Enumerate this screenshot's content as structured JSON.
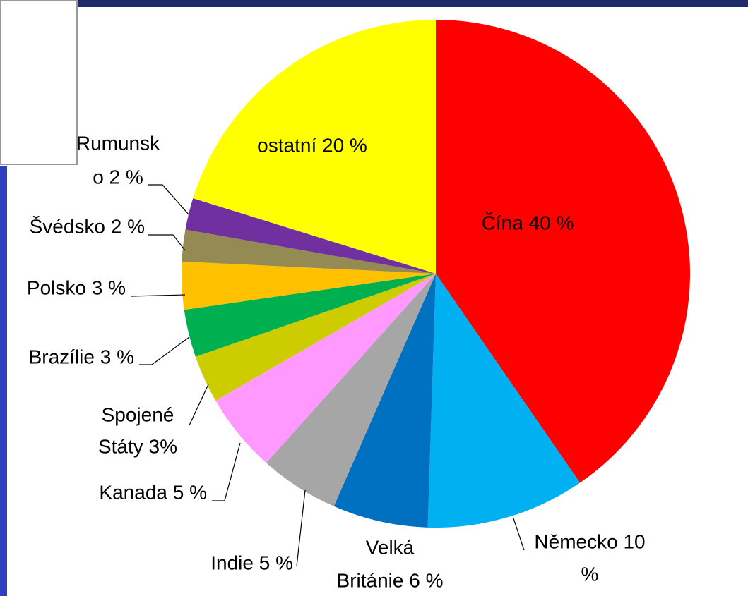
{
  "chart_data": {
    "type": "pie",
    "value_labels": [
      [
        "Čína 40 %"
      ],
      [
        "Německo 10",
        "%"
      ],
      [
        "Velká",
        "Británie 6 %"
      ],
      [
        "Indie 5 %"
      ],
      [
        "Kanada 5 %"
      ],
      [
        "Spojené",
        "Státy 3%"
      ],
      [
        "Brazílie 3 %"
      ],
      [
        "Polsko 3 %"
      ],
      [
        "Švédsko 2 %"
      ],
      [
        "Rumunsk",
        "o 2 %"
      ],
      [
        "ostatní 20 %"
      ]
    ],
    "values": [
      40,
      10,
      6,
      5,
      5,
      3,
      3,
      3,
      2,
      2,
      20
    ],
    "colors": [
      "#ff0000",
      "#00b0f0",
      "#0070c0",
      "#a6a6a6",
      "#ff99ff",
      "#cccc00",
      "#00b050",
      "#ffc000",
      "#948a54",
      "#7030a0",
      "#ffff00"
    ]
  }
}
